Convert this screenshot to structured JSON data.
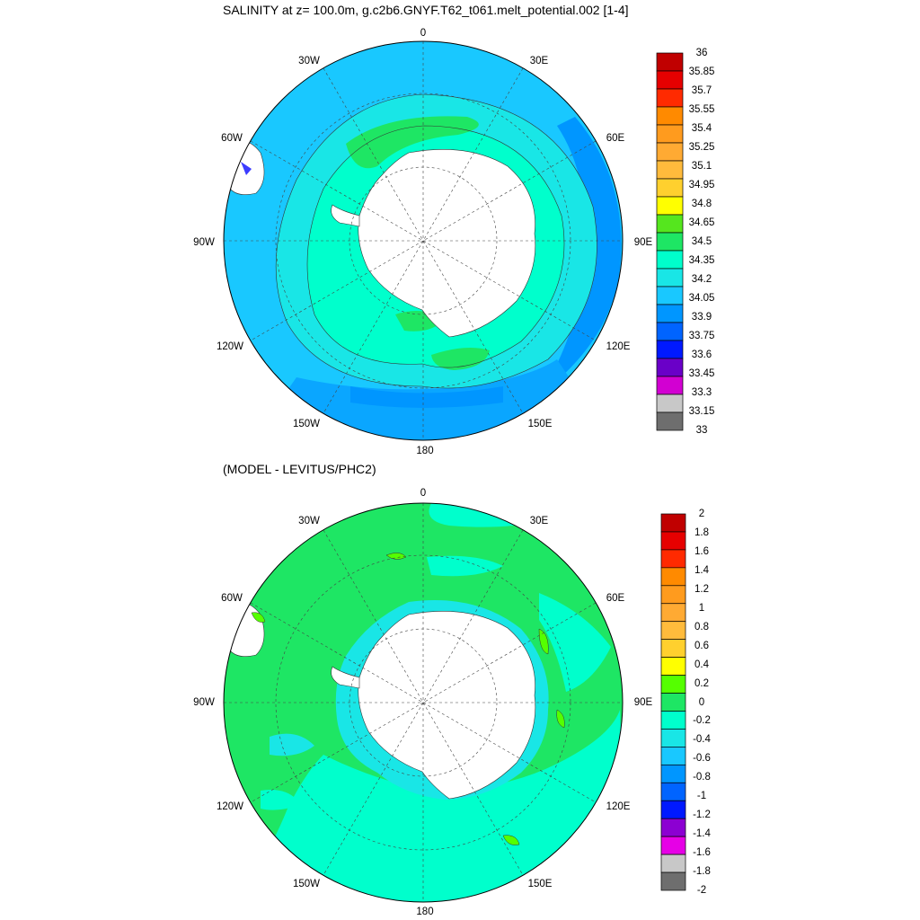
{
  "panels": [
    {
      "title": "SALINITY at z= 100.0m, g.c2b6.GNYF.T62_t061.melt_potential.002 [1-4]",
      "lon_labels": [
        "0",
        "30E",
        "60E",
        "90E",
        "120E",
        "150E",
        "180",
        "150W",
        "120W",
        "90W",
        "60W",
        "30W"
      ],
      "colorbar": {
        "labels": [
          "36",
          "35.85",
          "35.7",
          "35.55",
          "35.4",
          "35.25",
          "35.1",
          "34.95",
          "34.8",
          "34.65",
          "34.5",
          "34.35",
          "34.2",
          "34.05",
          "33.9",
          "33.75",
          "33.6",
          "33.45",
          "33.3",
          "33.15",
          "33"
        ],
        "colors": [
          "#c00000",
          "#e60000",
          "#ff2a00",
          "#ff8a00",
          "#ff9b1e",
          "#ffaa33",
          "#ffbb3c",
          "#ffd02e",
          "#ffff00",
          "#55e61e",
          "#1ee664",
          "#00ffcc",
          "#19e6e6",
          "#19c8ff",
          "#0096ff",
          "#0064ff",
          "#0019ff",
          "#6a00c8",
          "#d200d2",
          "#c8c8c8",
          "#6e6e6e"
        ]
      }
    },
    {
      "title": "(MODEL - LEVITUS/PHC2)",
      "lon_labels": [
        "0",
        "30E",
        "60E",
        "90E",
        "120E",
        "150E",
        "180",
        "150W",
        "120W",
        "90W",
        "60W",
        "30W"
      ],
      "colorbar": {
        "labels": [
          "2",
          "1.8",
          "1.6",
          "1.4",
          "1.2",
          "1",
          "0.8",
          "0.6",
          "0.4",
          "0.2",
          "0",
          "-0.2",
          "-0.4",
          "-0.6",
          "-0.8",
          "-1",
          "-1.2",
          "-1.4",
          "-1.6",
          "-1.8",
          "-2"
        ],
        "colors": [
          "#c00000",
          "#e60000",
          "#ff2a00",
          "#ff8a00",
          "#ff9b1e",
          "#ffaa33",
          "#ffbb3c",
          "#ffd02e",
          "#ffff00",
          "#55ff00",
          "#1ee664",
          "#00ffcc",
          "#19e6e6",
          "#19c8ff",
          "#0096ff",
          "#0064ff",
          "#0019ff",
          "#8c00d2",
          "#e600e6",
          "#c8c8c8",
          "#6e6e6e"
        ]
      }
    }
  ]
}
